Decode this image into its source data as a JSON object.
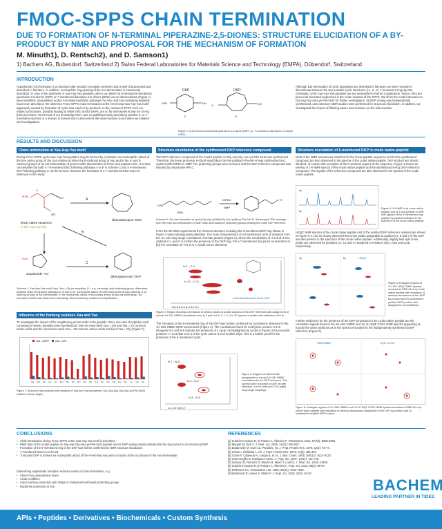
{
  "title": "FMOC-SPPS CHAIN TERMINATION",
  "subtitle": "DUE TO FORMATION OF N-TERMINAL PIPERAZINE-2,5-DIONES: STRUCTURE ELUCIDATION OF A BY-PRODUCT BY NMR AND PROPOSAL FOR THE MECHANISM OF FORMATION",
  "authors": "M. Minuth1), D. Rentsch2), and D. Samson1)",
  "affiliations": "1) Bachem AG, Bubendorf, Switzerland  2) Swiss Federal Laboratories for Materials Science and Technology (EMPA), Dübendorf, Switzerland",
  "sections": {
    "introduction": "INTRODUCTION",
    "results": "RESULTS AND DISCUSSION",
    "conclusions": "CONCLUSIONS",
    "references": "REFERENCES"
  },
  "intro": {
    "left": "Aspartimide (Asi) formation is a notorious side reaction in peptide synthesis that is well characterized and described in literature. In addition, nucleophilic ring opening of the Asi intermediate is extensively described. In case of the synthesis of Xaa-Asp-Yaa peptides, which can either be N-terminal 6-membered piperazine-2,5-diones (DKP) or 7-membered diazepine-2,5-diones (DKD) via Asi intermediates (Figure 1) were identified. Deamidation and/or Asi-related synthetic pathways for Asp- and Asn-containing peptides have been described. We observed Fmoc-SPPS chain termination at the N-terminal Xaa-Asp-Yaa motif apparently caused by formation of cyclic Xaa-Asp/Asi by-products. In the context of SPPS such Asi-related cyclizations, possibly leading to either DKD and/or DKPs, are so far exclusively known for of Asp β-benzyl esters. To the best of our knowledge there was no published study describing whether 6- or 7-membered species or a mixture is formed and to what extent this side-reaction occurs when we initiated our investigations.",
    "fig_caption": "Figure 1: N-terminal 6-membered piperazine-2,5-dione (DKP) vs. 7-membered diazepine-2,5-dione (DKD).",
    "right": "Although ESI-MS studies of cyclic dipeptides are described in literature we were not able to discriminate between the two possible cyclic structures (i.e. 6- vs. 7-membered ring) by MS. Obviously, cyclic Xaa-Asp-Yaa peptides are not amenable for further a application. Hence, they are proved as truncated sequences in the crude material of the SPPS. We show the model structure Ac-Gly-Asp-Gly-Ala-Lys-Phe-NH2 for further investigation. Its DKP analog was independently synthesized, and extensive NMR studies were performed for structural elucidation. In addition, we investigated the impact of flanking amino acid residues on the side reaction."
  },
  "boxes": {
    "b1": "Chain termination at Xaa-Asp-Yaa motif",
    "b2": "Structure elucidation of the synthesized DKP reference compound",
    "b3": "Structure elucidation of 6-membered DKP in crude native peptide",
    "b4": "Influence of the flanking residues Xaa and Yaa"
  },
  "col1": {
    "text": "During Fmoc-SPPS cyclic Xaa-Asp-Yaa peptides may be formed by cyclization via nucleophilic attack of the free amino group of the Xaa residue at either the β-carbonyl group of Asp and/or the α- and β-carbonyl groups of an Asi intermediate of present after deprotection of Fmoc-Xaa-peptide-resin. It is thus conceivable that both a 7-membered DKD following pathways A or B in Scheme 1 and a 6-membered DKP following pathway C can be formed. However the formation of a 7-membered DKD was not observed in this study.",
    "label_dkd": "diketodiazepine 'DKD'",
    "label_dkp": "diketopiperazine 'DKP'",
    "label_linear": "linear native sequence",
    "label_seq": "H-Gly-Asp-Gly-Gly-",
    "label_asi": "aspartimide 'Asi'",
    "scheme_caption": "Scheme 1: Xaa-Asp-Yaa motif: Xaa, Yaa = Gly for simplicity. R = e.g. carboxylic acid protecting group. Alternative possible chain termination pathways A, B and C for nucleophilic attack of N-terminal amine at Asp-carbonyl or at carbonyl groups of Asi intermediate. A: for nucleophilic attack of secondary amine at Asp-carbonyl group. No formation of DKD was observed in this study. Stereochemistry omitted for simplification.",
    "text2": "To investigate the impact of the neighboring amino acids in the peptide chain, two sets of peptides each consisting of twenty peptides were synthesized. One set used fixed Xaa = Gly and Yaa = 20 common amino acids and the second set used Xaa = 20 common amino acids and fixed Yaa = Gly (Figure 7).",
    "fig7_caption": "Figure 7: Amount of by-products with variation of Xaa and Yaa (sequence = Ac-Xaa-Asp-Gly-Ala-Lys-Phe-NH2) relative to linear target."
  },
  "col2": {
    "text": "The DKP reference compound of the model peptide Ac-Gly-Asp-Gly-Ala-Lys-Phe-NH2 was synthesized. Therefore, the linear precursor H-Gly-β-Asp(OtBu)-Gly-Ala-Lys(Boc)-Phe-NH-R was synthesized and cyclized with DIPEA in NMP. The protecting groups were removed and the DKP reference compound was isolated by preparative HPLC.",
    "scheme2_caption": "Scheme 2: On-resin formation of cyclo(-Gly-Asp-)(OtBu)Gly-Ala-Lys(Boc)-Phe-NH-R. Subsequent TFA cleavage from the resin and deprotection of side chain and backbone protecting groups yielding the crude DKP reference.",
    "text2": "From the 2D NMR experiments the chemical structure including the 6-membered DKP ring shown in Figure 2 was unambiguously identified. The main characteristics of a 6-membered cycle is obtained from the 1H-13C long range correlations of amide protons (Figure 2), where the correlations of H-2 and H-5 to carbons C-1 and C-4 confirm the presence of the DKP ring. For a 7-membered ring (such as described in [6]) the correlation of H-5 to C-1 would not be observed.",
    "fig2_caption": "Figure 2: Region showing correlations of amide protons to amide carbons of the DKP reference with assignment of crucial 1H-13C HMBC correlations from H-2 and H-5 to C-1, C-4 in 2D spectra recorded with detection of 4 Hz.",
    "text3": "The formation of the 6-membered ring of the DKP was further confirmed by correlations observed in the 1H-15N HMBC NMR experiments (Figure 3). The correlations found for methylene protons H-3 to nitrogens N-2 and N-5 indicate the presence of a cycle. As highlighted by circles in Figure 3 the exocyclic protons H-7 correlate to N-5 of the cycle and to N-9 of residue Gly3. This is a further proof for the presence of the 6-membered cycle.",
    "fig3_caption": "Figure 3: Regions of interest with assignment of crucial 1H-15N HMBC correlations for the DKP reference. The spectra were recorded in DMF-d6 with detection of 8 Hz (left) and 2 Hz (right) long range couplings.",
    "lbl_dkp_ref": "Chemical structure of the DKP"
  },
  "col3": {
    "text": "Most of the NMR resonances identified for the linear peptide sequence and for the synthesized compound are also observed in the spectra of the crude native peptide. DKP product are almost identical, of course with exception of the N-terminal regions of the sequence. Figure 4 shows an overlay of 1H NMR spectra of the crude native peptide and the synthesized 6-ring DKP reference compound. The signals of the reference compound are also observed in the spectra of the crude native peptide.",
    "fig4_caption": "Figure 4: 1H NMR of a) crude native peptide and b) 6-ring peptide in DMF with signals of the 6-membered ring peptide by-product indicated in the spectrum of the crude native peptide.",
    "text2": "HSQC NMR spectra of the crude native peptide and of the purified DKP reference material are shown in Figure 5. It can be clearly observed that cross peaks assignable to positions 3, 6 and 7 of the DKP are also present in the spectrum of the crude native peptide. Additionally, slightly less split cross peaks are observed for positions 10, 13 and 17 assigned to residues Gly3, Ala4 and Lys5, respectively.",
    "fig5_caption": "Figure 5: Enlarged regions of 1H-13C HSQC NMR spectra recorded in DMF-d6 of a) crude native peptide with indication of residual resonances of the DKP by-product and b) synthesized purified DKP product with assignment of correlations.",
    "text3": "Further evidences for the presence of the DKP by-product in the crude native peptide are the correlation signals found in the 1H-15N HMBC and 1H-1H DQF COSY NMR spectra appearing at exactly the same positions as in the spectra recorded for the independently synthesized DKP reference (Figure 6).",
    "fig6_caption": "Figure 6: Enlarged regions of 1H-15N HMBC and 1H-1H DQF COSY NMR spectra recorded in DMF-d6 of a) crude native peptide with indication of residual resonances assignable to the DKP by-product and b) synthesized purified DKP product.",
    "lbl_hsqc": "HSQC",
    "lbl_dqf": "DQF-COSY",
    "lbl_hmbc": "15N HMBC"
  },
  "conclusions": [
    "Chain termination during Fmoc-SPPS at the Xaa-Asp-Yaa motif is described",
    "NMR data of the model peptide Ac-Gly-Asp-Gly-Ala-Lys-Phe-NH2 peptide and its DKP analog clearly indicate that the by-product is an N-terminal DKP",
    "Formation of the 6-membered ring of the DKP was further confirmed by NMR structure elucidation",
    "7-membered DKD is not found",
    "Truncated DKP is formed via nucleophilic attack of the N-terminal Xaa amino function at the α-carbonyl of the Asi intermediate"
  ],
  "conclusions_extra": "Diminishing aspartimide formation reduces extent of chain termination, e.g.",
  "conclusions_sub": [
    "Short Fmoc deprotection times",
    "Acidic modifiers",
    "Asp β-carboxy protection with OMpe or trialkylcarbinol-based protecting groups",
    "Backbone protection at Yaa"
  ],
  "references": [
    "[1]  Subirós-Funosas R, El-Faham A, Albericio F, Tetrahedron 2011; 67(45): 8595-8606.",
    "[2]  Mergler M, Dick F, J. Pept. Sci. 2005; 11(10): 650-657.",
    "[3]  Bodanszky M, Kwei JZ, Peptides, Int. J. Pept. Protein Res. 1978; 12(2): 69-74.",
    "[4]  Schön I, Kisfaludy L, Int. J. Pept. Protein Res. 1979; 14(5): 485-494.",
    "[5]  Currie F, Catteeuw A, Longin B, et al., J. Biol. Chem. 2005; 280(12): 9114-9123.",
    "[6]  Sola-Vergilio D, Rodriguez-Chaci, J. Pept. Sci. 2007; 13(11): 742-748.",
    "[7]  Samson D, Rentsch D, Minuth M, Meier T, Loidl G, J. Pept. Sci. 2019; e3193.",
    "[8]  Subirós-Funosas R, El-Faham A, Albericio F, Pept. Sci. 2012; 98(2): 89-97.",
    "[9]  Parkinson LC, Tetrahedron Lett. 1995; 36(41): 7523-7526.",
    "[10] Behrendt R, Huber S, White P, J. Pept. Sci. 2016; 22(2): 92-97."
  ],
  "footer": "APIs • Peptides • Derivatives • Biochemicals • Custom Synthesis",
  "logo": "BACHEM",
  "slogan": "LEADING PARTNER IN TIDES",
  "colors": {
    "accent": "#1e88c8",
    "box_header": "#1e6ea8",
    "red": "#c62828"
  },
  "chart_data": {
    "type": "bar",
    "categories": [
      "Gly",
      "Ala",
      "Val",
      "Leu",
      "Ile",
      "Met",
      "Phe",
      "Trp",
      "Pro",
      "Ser",
      "Thr",
      "Cys",
      "Tyr",
      "Asn",
      "Gln",
      "Asp",
      "Glu",
      "Lys",
      "Arg",
      "His"
    ],
    "series": [
      {
        "name": "Xaa - AS/PP",
        "values": [
          78,
          70,
          62,
          66,
          60,
          64,
          58,
          55,
          30,
          68,
          72,
          62,
          56,
          60,
          57,
          52,
          50,
          64,
          63,
          66
        ]
      },
      {
        "name": "Xaa - DKP",
        "values": [
          10,
          6,
          2,
          4,
          3,
          5,
          7,
          3,
          1,
          8,
          5,
          6,
          4,
          9,
          6,
          3,
          2,
          4,
          5,
          7
        ]
      }
    ]
  }
}
